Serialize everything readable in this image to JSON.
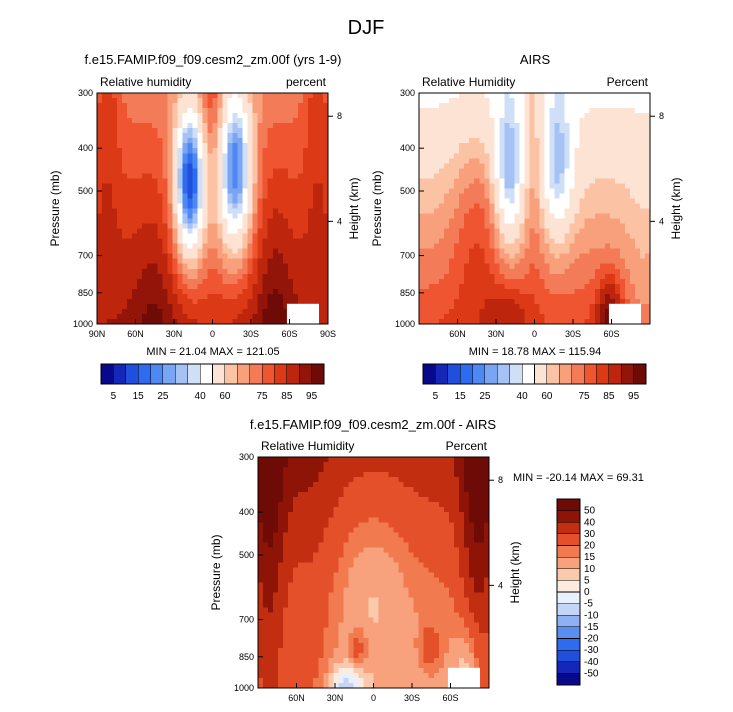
{
  "figure_title": "DJF",
  "chart_data": [
    {
      "type": "heatmap",
      "title": "f.e15.FAMIP.f09_f09.cesm2_zm.00f (yrs 1-9)",
      "variable_label": "Relative humidity",
      "units_label": "percent",
      "ylabel": "Pressure (mb)",
      "ylabel_right": "Height (km)",
      "x_ticks": [
        "90N",
        "60N",
        "30N",
        "0",
        "30S",
        "60S",
        "90S"
      ],
      "y_ticks": [
        "300",
        "400",
        "500",
        "700",
        "850",
        "1000"
      ],
      "height_ticks": [
        "8",
        "4"
      ],
      "xlim": [
        90,
        -90
      ],
      "ylim": [
        1000,
        300
      ],
      "log_pressure": true,
      "stats": "MIN = 21.04   MAX = 121.05",
      "field": "rh_model",
      "colorbar": {
        "orientation": "horizontal",
        "labels": [
          "5",
          "15",
          "25",
          "40",
          "60",
          "75",
          "85",
          "95"
        ],
        "levels": [
          5,
          10,
          15,
          20,
          25,
          30,
          35,
          40,
          50,
          60,
          65,
          70,
          75,
          80,
          85,
          90,
          95
        ],
        "colors": [
          "#08088c",
          "#1427b8",
          "#1f4fdc",
          "#2e6bef",
          "#4e88f2",
          "#7aa5f3",
          "#a5c2f4",
          "#cfdff8",
          "#ffffff",
          "#fde3d3",
          "#fbc3a4",
          "#f8a07c",
          "#f47b57",
          "#ee5530",
          "#dc3a17",
          "#bd260d",
          "#93150a",
          "#6e0b06"
        ]
      }
    },
    {
      "type": "heatmap",
      "title": "AIRS",
      "variable_label": "Relative Humidity",
      "units_label": "Percent",
      "ylabel": "Pressure (mb)",
      "ylabel_right": "Height (km)",
      "x_ticks": [
        "60N",
        "30N",
        "0",
        "30S",
        "60S"
      ],
      "y_ticks": [
        "300",
        "400",
        "500",
        "700",
        "850",
        "1000"
      ],
      "height_ticks": [
        "8",
        "4"
      ],
      "xlim": [
        90,
        -90
      ],
      "ylim": [
        1000,
        300
      ],
      "log_pressure": true,
      "stats": "MIN = 18.78   MAX = 115.94",
      "field": "rh_airs",
      "colorbar": {
        "orientation": "horizontal",
        "labels": [
          "5",
          "15",
          "25",
          "40",
          "60",
          "75",
          "85",
          "95"
        ],
        "levels": [
          5,
          10,
          15,
          20,
          25,
          30,
          35,
          40,
          50,
          60,
          65,
          70,
          75,
          80,
          85,
          90,
          95
        ],
        "colors": [
          "#08088c",
          "#1427b8",
          "#1f4fdc",
          "#2e6bef",
          "#4e88f2",
          "#7aa5f3",
          "#a5c2f4",
          "#cfdff8",
          "#ffffff",
          "#fde3d3",
          "#fbc3a4",
          "#f8a07c",
          "#f47b57",
          "#ee5530",
          "#dc3a17",
          "#bd260d",
          "#93150a",
          "#6e0b06"
        ]
      }
    },
    {
      "type": "heatmap",
      "title": "f.e15.FAMIP.f09_f09.cesm2_zm.00f - AIRS",
      "variable_label": "Relative Humidity",
      "units_label": "Percent",
      "ylabel": "Pressure (mb)",
      "ylabel_right": "Height (km)",
      "x_ticks": [
        "60N",
        "30N",
        "0",
        "30S",
        "60S"
      ],
      "y_ticks": [
        "300",
        "400",
        "500",
        "700",
        "850",
        "1000"
      ],
      "height_ticks": [
        "8",
        "4"
      ],
      "xlim": [
        90,
        -90
      ],
      "ylim": [
        1000,
        300
      ],
      "log_pressure": true,
      "stats": "MIN = -20.14   MAX = 69.31",
      "field": "rh_diff",
      "colorbar": {
        "orientation": "vertical",
        "labels": [
          "50",
          "40",
          "30",
          "20",
          "15",
          "10",
          "5",
          "0",
          "-5",
          "-10",
          "-15",
          "-20",
          "-30",
          "-40",
          "-50"
        ],
        "levels": [
          -50,
          -40,
          -30,
          -20,
          -15,
          -10,
          -5,
          0,
          5,
          10,
          15,
          20,
          30,
          40,
          50
        ],
        "colors": [
          "#08088c",
          "#1427b8",
          "#1f4fdc",
          "#2e6bef",
          "#5a8ef2",
          "#8fb0f4",
          "#c4d6f6",
          "#e8f0fb",
          "#fdebdf",
          "#fbc9ab",
          "#f7a27c",
          "#f27a4f",
          "#e4502a",
          "#c22e10",
          "#8e1407",
          "#6e0b06"
        ]
      }
    }
  ]
}
